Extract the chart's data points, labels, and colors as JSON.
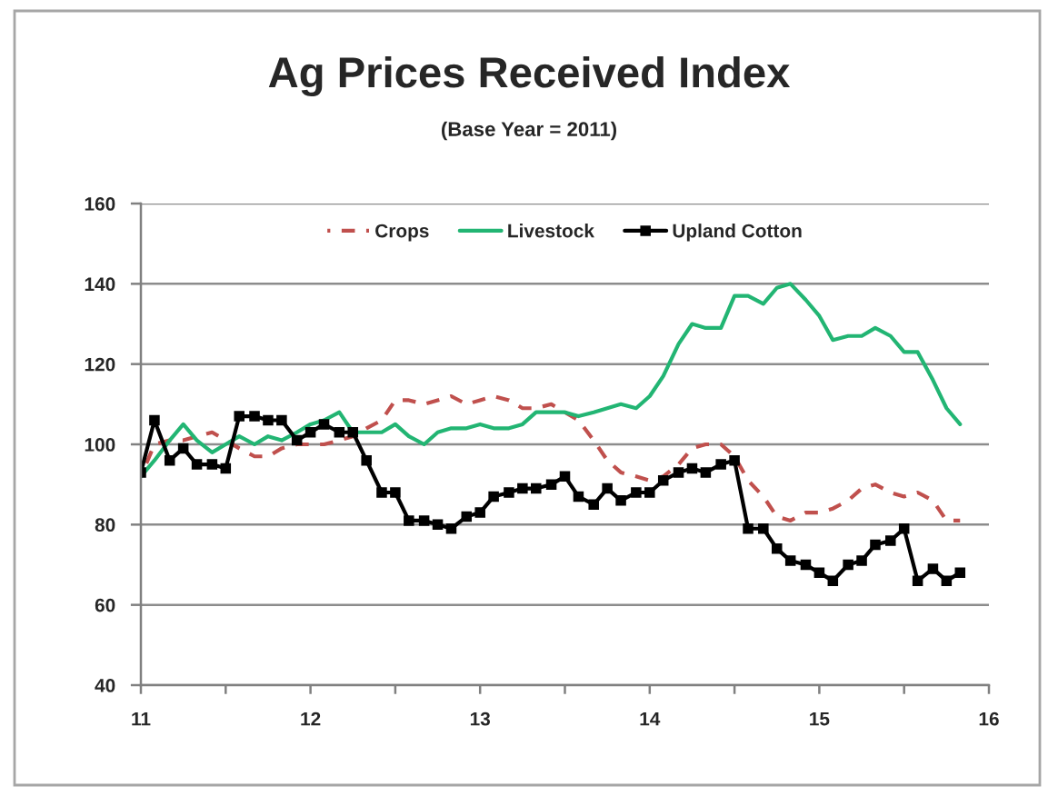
{
  "chart_data": {
    "type": "line",
    "title": "Ag Prices Received Index",
    "subtitle": "(Base Year = 2011)",
    "x": [
      11.0,
      11.08,
      11.17,
      11.25,
      11.33,
      11.42,
      11.5,
      11.58,
      11.67,
      11.75,
      11.83,
      11.92,
      12.0,
      12.08,
      12.17,
      12.25,
      12.33,
      12.42,
      12.5,
      12.58,
      12.67,
      12.75,
      12.83,
      12.92,
      13.0,
      13.08,
      13.17,
      13.25,
      13.33,
      13.42,
      13.5,
      13.58,
      13.67,
      13.75,
      13.83,
      13.92,
      14.0,
      14.08,
      14.17,
      14.25,
      14.33,
      14.42,
      14.5,
      14.58,
      14.67,
      14.75,
      14.83,
      14.92,
      15.0,
      15.08,
      15.17,
      15.25,
      15.33,
      15.42,
      15.5,
      15.58,
      15.67,
      15.75,
      15.83
    ],
    "series": [
      {
        "name": "Crops",
        "color": "#c0504d",
        "line_style": "dashed",
        "marker": "none",
        "values": [
          92,
          100,
          101,
          101,
          102,
          103,
          101,
          99,
          97,
          97,
          99,
          100,
          100,
          100,
          101,
          102,
          104,
          106,
          111,
          111,
          110,
          111,
          112,
          110,
          111,
          112,
          111,
          109,
          109,
          110,
          108,
          106,
          101,
          96,
          93,
          92,
          91,
          92,
          95,
          99,
          100,
          100,
          97,
          91,
          87,
          82,
          81,
          83,
          83,
          84,
          86,
          89,
          90,
          88,
          87,
          88,
          86,
          81,
          81
        ]
      },
      {
        "name": "Livestock",
        "color": "#22b573",
        "line_style": "solid",
        "marker": "none",
        "values": [
          92,
          96,
          101,
          105,
          101,
          98,
          100,
          102,
          100,
          102,
          101,
          103,
          105,
          106,
          108,
          103,
          103,
          103,
          105,
          102,
          100,
          103,
          104,
          104,
          105,
          104,
          104,
          105,
          108,
          108,
          108,
          107,
          108,
          109,
          110,
          109,
          112,
          117,
          125,
          130,
          129,
          129,
          137,
          137,
          135,
          139,
          140,
          136,
          132,
          126,
          127,
          127,
          129,
          127,
          123,
          123,
          116,
          109,
          105
        ]
      },
      {
        "name": "Upland Cotton",
        "color": "#000000",
        "line_style": "solid",
        "marker": "square",
        "values": [
          93,
          106,
          96,
          99,
          95,
          95,
          94,
          107,
          107,
          106,
          106,
          101,
          103,
          105,
          103,
          103,
          96,
          88,
          88,
          81,
          81,
          80,
          79,
          82,
          83,
          87,
          88,
          89,
          89,
          90,
          92,
          87,
          85,
          89,
          86,
          88,
          88,
          91,
          93,
          94,
          93,
          95,
          96,
          79,
          79,
          74,
          71,
          70,
          68,
          66,
          70,
          71,
          75,
          76,
          79,
          66,
          69,
          66,
          68
        ]
      }
    ],
    "xlim": [
      11,
      16
    ],
    "xticks": [
      11,
      {
        "value": 11.5,
        "label": null
      },
      12,
      {
        "value": 12.5,
        "label": null
      },
      13,
      {
        "value": 13.5,
        "label": null
      },
      14,
      {
        "value": 14.5,
        "label": null
      },
      15,
      {
        "value": 15.5,
        "label": null
      },
      16
    ],
    "ylim": [
      40,
      160
    ],
    "yticks": [
      40,
      60,
      80,
      100,
      120,
      140,
      160
    ],
    "grid": "y",
    "legend": "top"
  }
}
